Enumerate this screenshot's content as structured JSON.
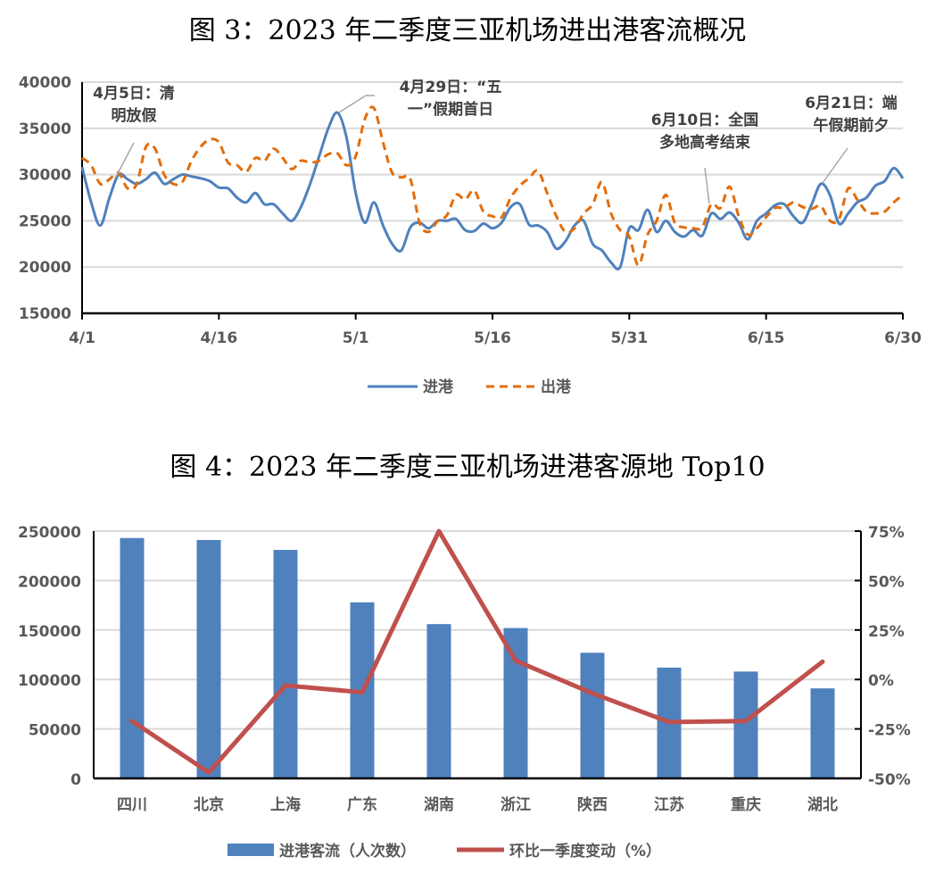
{
  "chart_data": [
    {
      "type": "line",
      "title": "图 3：2023 年二季度三亚机场进出港客流概况",
      "x_start": "4/1",
      "x_end": "6/30",
      "x_tick_labels": [
        "4/1",
        "4/16",
        "5/1",
        "5/16",
        "5/31",
        "6/15",
        "6/30"
      ],
      "y_tick_labels": [
        "15000",
        "20000",
        "25000",
        "30000",
        "35000",
        "40000"
      ],
      "ylim": [
        15000,
        40000
      ],
      "grid": true,
      "legend": "bottom",
      "series": [
        {
          "name": "进港",
          "color": "#4F81BD",
          "style": "solid",
          "values": [
            30800,
            27000,
            24500,
            27500,
            30000,
            29500,
            29000,
            29500,
            30200,
            29000,
            29500,
            30000,
            29800,
            29600,
            29300,
            28600,
            28500,
            27500,
            27000,
            28000,
            26800,
            26800,
            25800,
            25000,
            26500,
            29000,
            32000,
            35000,
            36700,
            34000,
            28000,
            24800,
            27000,
            24500,
            22500,
            21800,
            24300,
            24800,
            24200,
            25000,
            25000,
            25200,
            24000,
            23900,
            24700,
            24200,
            24800,
            26500,
            26800,
            24600,
            24500,
            23800,
            22000,
            22800,
            24500,
            25000,
            22500,
            21800,
            20500,
            20000,
            24200,
            24000,
            26200,
            23800,
            25000,
            23800,
            23300,
            24000,
            23400,
            25800,
            25200,
            25900,
            24800,
            23000,
            25000,
            25800,
            26700,
            26800,
            25500,
            24800,
            26800,
            29000,
            27800,
            24700,
            25800,
            27000,
            27500,
            28800,
            29300,
            30700,
            29600
          ]
        },
        {
          "name": "出港",
          "color": "#E36C0A",
          "style": "dashed",
          "values": [
            31800,
            31000,
            29000,
            29500,
            30200,
            28500,
            29000,
            33000,
            32800,
            30000,
            29000,
            29200,
            31500,
            33000,
            33800,
            33500,
            31300,
            31000,
            30300,
            31800,
            31500,
            32800,
            31800,
            30600,
            31500,
            31300,
            31500,
            32200,
            32300,
            31000,
            32000,
            36000,
            37200,
            33500,
            30200,
            29700,
            29500,
            24800,
            23800,
            25000,
            25600,
            27800,
            27300,
            28300,
            26000,
            25500,
            25400,
            27500,
            28800,
            29600,
            30400,
            28000,
            25500,
            23800,
            24200,
            25800,
            26800,
            29200,
            25800,
            24000,
            23300,
            20200,
            23500,
            25000,
            27800,
            24800,
            24300,
            24200,
            24300,
            26800,
            26400,
            28700,
            25500,
            23500,
            24200,
            25400,
            26400,
            26400,
            27000,
            26500,
            26300,
            26600,
            25000,
            25200,
            28500,
            27300,
            26000,
            25800,
            26000,
            27000,
            27800
          ]
        }
      ],
      "annotations": [
        {
          "lines": [
            "4月5日：清",
            "明放假"
          ],
          "day_index": 4
        },
        {
          "lines": [
            "4月29日：“五",
            "一”假期首日"
          ],
          "day_index": 28
        },
        {
          "lines": [
            "6月10日：全国",
            "多地高考结束"
          ],
          "day_index": 69
        },
        {
          "lines": [
            "6月21日：端",
            "午假期前夕"
          ],
          "day_index": 81
        }
      ]
    },
    {
      "type": "bar+line",
      "title": "图 4：2023 年二季度三亚机场进港客源地 Top10",
      "categories": [
        "四川",
        "北京",
        "上海",
        "广东",
        "湖南",
        "浙江",
        "陕西",
        "江苏",
        "重庆",
        "湖北"
      ],
      "y_tick_labels": [
        "0",
        "50000",
        "100000",
        "150000",
        "200000",
        "250000"
      ],
      "ylim": [
        0,
        250000
      ],
      "y2_tick_labels": [
        "-50%",
        "-25%",
        "0%",
        "25%",
        "50%",
        "75%"
      ],
      "y2lim": [
        -50,
        75
      ],
      "grid": true,
      "legend": "bottom",
      "series": [
        {
          "name": "进港客流（人次数）",
          "type": "bar",
          "axis": "left",
          "color": "#4F81BD",
          "values": [
            243000,
            241000,
            231000,
            178000,
            156000,
            152000,
            127000,
            112000,
            108000,
            91000
          ]
        },
        {
          "name": "环比一季度变动（%）",
          "type": "line",
          "axis": "right",
          "color": "#C0504D",
          "values": [
            -21,
            -47,
            -3,
            -6.5,
            75,
            9.5,
            -7,
            -21.5,
            -21,
            9
          ]
        }
      ]
    }
  ]
}
